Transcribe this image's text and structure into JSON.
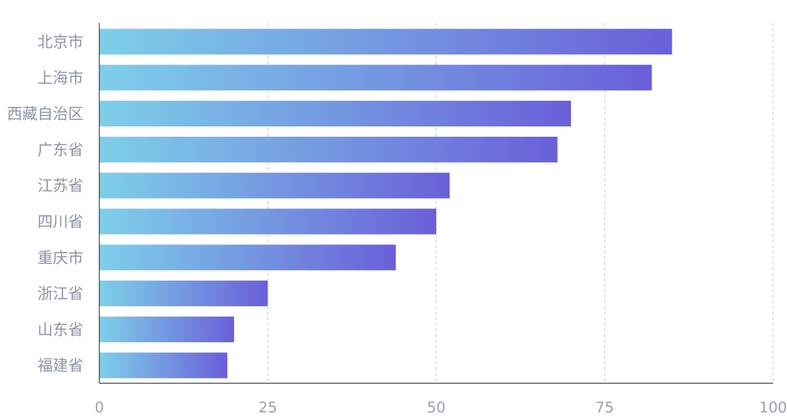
{
  "chart_data": {
    "type": "bar",
    "orientation": "horizontal",
    "categories": [
      "北京市",
      "上海市",
      "西藏自治区",
      "广东省",
      "江苏省",
      "四川省",
      "重庆市",
      "浙江省",
      "山东省",
      "福建省"
    ],
    "values": [
      85,
      82,
      70,
      68,
      52,
      50,
      44,
      25,
      20,
      19
    ],
    "xlim": [
      0,
      100
    ],
    "xticks": [
      "0",
      "25",
      "50",
      "75",
      "100"
    ],
    "grid": "vertical-dashed",
    "title": "",
    "xlabel": "",
    "ylabel": "",
    "colors": {
      "bar_gradient_start": "#7ecfe9",
      "bar_gradient_end": "#6a5fd9",
      "grid": "#c9ccd6",
      "axis": "#333333",
      "label": "#8e93a6"
    }
  }
}
